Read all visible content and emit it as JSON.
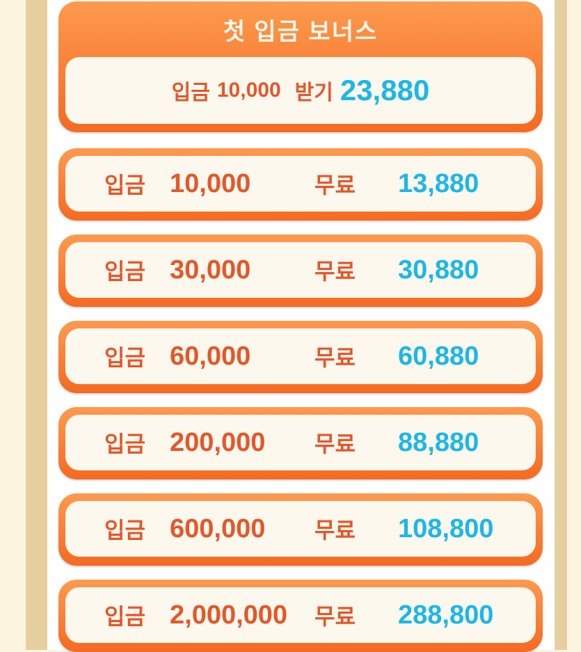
{
  "header": {
    "title": "첫 입금 보너스",
    "deposit_label": "입금",
    "deposit_amount": "10,000",
    "receive_label": "받기",
    "receive_amount": "23,880"
  },
  "rows": [
    {
      "deposit_label": "입금",
      "deposit": "10,000",
      "free_label": "무료",
      "free": "13,880"
    },
    {
      "deposit_label": "입금",
      "deposit": "30,000",
      "free_label": "무료",
      "free": "30,880"
    },
    {
      "deposit_label": "입금",
      "deposit": "60,000",
      "free_label": "무료",
      "free": "60,880"
    },
    {
      "deposit_label": "입금",
      "deposit": "200,000",
      "free_label": "무료",
      "free": "88,880"
    },
    {
      "deposit_label": "입금",
      "deposit": "600,000",
      "free_label": "무료",
      "free": "108,800"
    },
    {
      "deposit_label": "입금",
      "deposit": "2,000,000",
      "free_label": "무료",
      "free": "288,800"
    }
  ],
  "colors": {
    "orange": "#f56a22",
    "text_orange": "#e4572a",
    "blue": "#1bb7e8"
  }
}
